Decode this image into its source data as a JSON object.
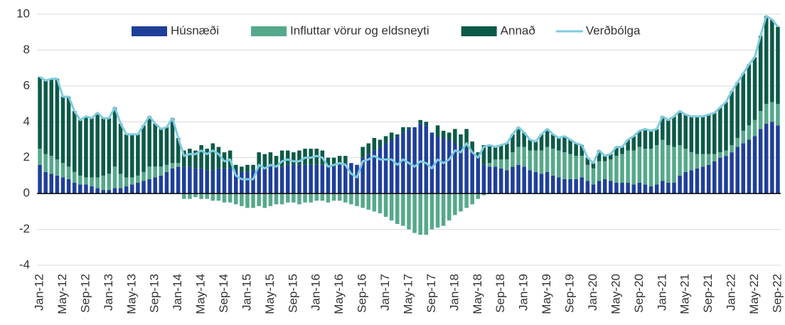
{
  "chart_data": {
    "type": "bar",
    "categories": [
      "Jan-12",
      null,
      null,
      null,
      "May-12",
      null,
      null,
      null,
      "Sep-12",
      null,
      null,
      null,
      "Jan-13",
      null,
      null,
      null,
      "May-13",
      null,
      null,
      null,
      "Sep-13",
      null,
      null,
      null,
      "Jan-14",
      null,
      null,
      null,
      "May-14",
      null,
      null,
      null,
      "Sep-14",
      null,
      null,
      null,
      "Jan-15",
      null,
      null,
      null,
      "May-15",
      null,
      null,
      null,
      "Sep-15",
      null,
      null,
      null,
      "Jan-16",
      null,
      null,
      null,
      "May-16",
      null,
      null,
      null,
      "Sep-16",
      null,
      null,
      null,
      "Jan-17",
      null,
      null,
      null,
      "May-17",
      null,
      null,
      null,
      "Sep-17",
      null,
      null,
      null,
      "Jan-18",
      null,
      null,
      null,
      "May-18",
      null,
      null,
      null,
      "Sep-18",
      null,
      null,
      null,
      "Jan-19",
      null,
      null,
      null,
      "May-19",
      null,
      null,
      null,
      "Sep-19",
      null,
      null,
      null,
      "Jan-20",
      null,
      null,
      null,
      "May-20",
      null,
      null,
      null,
      "Sep-20",
      null,
      null,
      null,
      "Jan-21",
      null,
      null,
      null,
      "May-21",
      null,
      null,
      null,
      "Sep-21",
      null,
      null,
      null,
      "Jan-22",
      null,
      null,
      null,
      "May-22",
      null,
      null,
      null,
      "Sep-22"
    ],
    "series": [
      {
        "name": "Húsnæði",
        "color": "#1f3f99",
        "values": [
          1.6,
          1.2,
          1.1,
          1.0,
          0.9,
          0.8,
          0.6,
          0.5,
          0.5,
          0.4,
          0.3,
          0.2,
          0.2,
          0.3,
          0.3,
          0.4,
          0.5,
          0.6,
          0.7,
          0.8,
          0.9,
          1.0,
          1.2,
          1.4,
          1.5,
          1.5,
          1.5,
          1.4,
          1.4,
          1.3,
          1.3,
          1.4,
          1.4,
          1.4,
          1.3,
          1.2,
          1.2,
          1.3,
          1.4,
          1.4,
          1.5,
          1.5,
          1.5,
          1.6,
          1.6,
          1.6,
          1.6,
          1.6,
          1.6,
          1.6,
          1.5,
          1.5,
          1.6,
          1.7,
          1.7,
          1.6,
          2.0,
          2.2,
          2.4,
          2.6,
          2.8,
          3.0,
          3.2,
          3.4,
          3.6,
          3.7,
          3.9,
          3.8,
          3.4,
          3.2,
          3.1,
          3.0,
          2.8,
          2.6,
          2.5,
          2.3,
          2.0,
          1.6,
          1.5,
          1.5,
          1.4,
          1.3,
          1.5,
          1.6,
          1.5,
          1.3,
          1.2,
          1.1,
          1.2,
          1.0,
          0.9,
          0.8,
          0.8,
          0.8,
          0.9,
          0.7,
          0.5,
          0.7,
          0.8,
          0.7,
          0.6,
          0.6,
          0.6,
          0.5,
          0.6,
          0.5,
          0.4,
          0.5,
          0.7,
          0.6,
          0.6,
          1.0,
          1.2,
          1.3,
          1.4,
          1.5,
          1.6,
          1.8,
          2.0,
          2.1,
          2.3,
          2.6,
          2.8,
          3.0,
          3.2,
          3.6,
          3.9,
          4.0,
          3.8
        ]
      },
      {
        "name": "Influttar vörur og eldsneyti",
        "color": "#55a98a",
        "values": [
          0.9,
          1.0,
          1.0,
          0.9,
          0.8,
          0.7,
          0.6,
          0.5,
          0.4,
          0.5,
          0.6,
          0.8,
          0.9,
          1.2,
          0.8,
          0.5,
          0.4,
          0.4,
          0.5,
          0.7,
          0.6,
          0.5,
          0.4,
          0.3,
          0.2,
          -0.3,
          -0.3,
          -0.2,
          -0.3,
          -0.3,
          -0.4,
          -0.4,
          -0.5,
          -0.5,
          -0.6,
          -0.7,
          -0.8,
          -0.8,
          -0.7,
          -0.8,
          -0.7,
          -0.6,
          -0.6,
          -0.5,
          -0.5,
          -0.6,
          -0.5,
          -0.5,
          -0.4,
          -0.4,
          -0.5,
          -0.4,
          -0.4,
          -0.5,
          -0.6,
          -0.7,
          -0.8,
          -0.9,
          -1.0,
          -1.1,
          -1.3,
          -1.5,
          -1.7,
          -1.8,
          -2.0,
          -2.2,
          -2.3,
          -2.3,
          -2.0,
          -1.9,
          -1.8,
          -1.5,
          -1.2,
          -1.0,
          -0.8,
          -0.6,
          -0.3,
          -0.1,
          0.2,
          0.4,
          0.5,
          0.6,
          0.8,
          1.0,
          1.1,
          1.1,
          1.2,
          1.3,
          1.4,
          1.5,
          1.5,
          1.5,
          1.4,
          1.3,
          1.2,
          0.9,
          0.9,
          1.1,
          1.0,
          1.2,
          1.5,
          1.6,
          1.8,
          1.9,
          2.0,
          2.0,
          2.1,
          2.2,
          2.3,
          2.1,
          2.0,
          1.7,
          1.3,
          1.0,
          0.8,
          0.7,
          0.6,
          0.4,
          0.3,
          0.3,
          0.4,
          0.5,
          0.7,
          0.8,
          0.9,
          1.0,
          1.1,
          1.1,
          1.2
        ]
      },
      {
        "name": "Annað",
        "color": "#0b5a47",
        "values": [
          4.0,
          4.1,
          4.3,
          4.5,
          3.7,
          3.9,
          3.4,
          3.1,
          3.4,
          3.3,
          3.6,
          3.2,
          3.1,
          3.3,
          2.8,
          2.4,
          2.4,
          2.3,
          2.6,
          2.8,
          2.4,
          2.1,
          2.1,
          2.5,
          1.4,
          0.9,
          1.0,
          1.0,
          1.3,
          1.2,
          1.5,
          1.2,
          0.9,
          1.0,
          0.3,
          0.3,
          0.4,
          0.3,
          0.9,
          0.8,
          0.8,
          0.6,
          0.9,
          0.8,
          0.7,
          0.8,
          0.9,
          0.9,
          0.9,
          0.8,
          0.5,
          0.5,
          0.5,
          0.4,
          0.0,
          0.0,
          0.6,
          0.6,
          0.7,
          0.4,
          0.4,
          0.4,
          0.1,
          0.3,
          0.1,
          0.0,
          0.2,
          0.2,
          0.0,
          0.6,
          0.4,
          0.4,
          0.8,
          0.7,
          1.1,
          0.6,
          0.3,
          1.1,
          1.0,
          0.7,
          0.8,
          0.9,
          1.0,
          1.1,
          0.8,
          0.6,
          0.5,
          0.9,
          1.0,
          0.8,
          0.7,
          0.9,
          0.8,
          0.7,
          0.6,
          0.4,
          0.3,
          0.6,
          0.3,
          0.3,
          0.5,
          0.4,
          0.6,
          0.8,
          0.9,
          1.1,
          1.0,
          0.9,
          1.3,
          1.4,
          1.7,
          1.9,
          1.9,
          2.0,
          2.1,
          2.1,
          2.2,
          2.3,
          2.5,
          2.7,
          3.0,
          3.1,
          3.2,
          3.4,
          3.5,
          4.2,
          4.9,
          4.6,
          4.3
        ]
      },
      {
        "name": "Verðbólga",
        "type": "line",
        "color": "#7fcbe0",
        "values": [
          6.5,
          6.3,
          6.4,
          6.4,
          5.4,
          5.4,
          4.6,
          4.1,
          4.3,
          4.2,
          4.5,
          4.2,
          4.2,
          4.8,
          3.9,
          3.3,
          3.3,
          3.3,
          3.8,
          4.3,
          3.9,
          3.6,
          3.7,
          4.2,
          3.1,
          2.1,
          2.2,
          2.2,
          2.4,
          2.2,
          2.4,
          2.2,
          1.8,
          1.9,
          1.0,
          0.8,
          0.8,
          0.8,
          1.6,
          1.4,
          1.6,
          1.5,
          1.8,
          1.9,
          1.8,
          1.8,
          2.0,
          2.0,
          2.1,
          2.0,
          1.5,
          1.6,
          1.7,
          1.6,
          1.1,
          0.9,
          1.8,
          1.9,
          2.1,
          1.9,
          1.9,
          1.9,
          1.6,
          1.9,
          1.7,
          1.5,
          1.8,
          1.7,
          1.4,
          1.9,
          1.7,
          1.9,
          2.4,
          2.3,
          2.8,
          2.3,
          2.0,
          2.6,
          2.7,
          2.6,
          2.7,
          2.8,
          3.3,
          3.7,
          3.4,
          3.0,
          2.9,
          3.3,
          3.6,
          3.3,
          3.1,
          3.2,
          3.0,
          2.8,
          2.7,
          2.0,
          1.7,
          2.4,
          2.1,
          2.2,
          2.6,
          2.6,
          3.0,
          3.2,
          3.5,
          3.6,
          3.5,
          3.6,
          4.3,
          4.1,
          4.3,
          4.6,
          4.4,
          4.3,
          4.3,
          4.3,
          4.4,
          4.5,
          4.8,
          5.1,
          5.7,
          6.2,
          6.7,
          7.2,
          7.6,
          8.8,
          9.9,
          9.7,
          9.3
        ]
      }
    ],
    "ylim": [
      -4,
      10
    ],
    "yticks": [
      -4,
      -2,
      0,
      2,
      4,
      6,
      8,
      10
    ],
    "grid": true,
    "legend": "top"
  }
}
